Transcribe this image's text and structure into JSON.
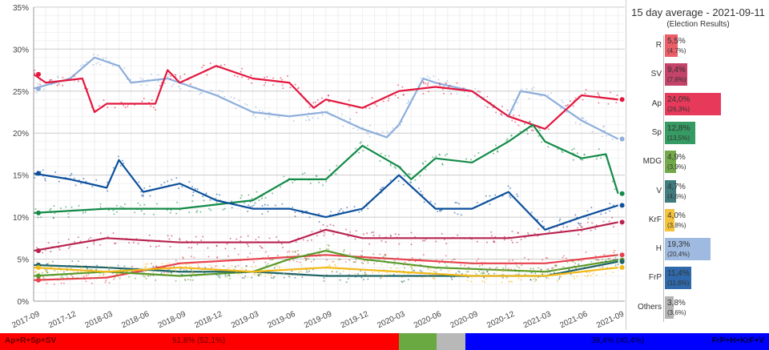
{
  "chart_data": {
    "type": "line",
    "ylim": [
      0,
      35
    ],
    "yticks": [
      "0%",
      "5%",
      "10%",
      "15%",
      "20%",
      "25%",
      "30%",
      "35%"
    ],
    "xticks": [
      "2017-09",
      "2017-12",
      "2018-03",
      "2018-06",
      "2018-09",
      "2018-12",
      "2019-03",
      "2019-06",
      "2019-09",
      "2019-12",
      "2020-03",
      "2020-06",
      "2020-09",
      "2020-12",
      "2021-03",
      "2021-06",
      "2021-09"
    ],
    "grid": true,
    "series": [
      {
        "name": "H",
        "color": "#8eaedb",
        "points": [
          [
            "2017-09",
            25.3
          ],
          [
            "2017-12",
            26.5
          ],
          [
            "2018-02",
            29
          ],
          [
            "2018-04",
            28
          ],
          [
            "2018-05",
            26
          ],
          [
            "2018-08",
            26.5
          ],
          [
            "2018-12",
            24.5
          ],
          [
            "2019-03",
            22.5
          ],
          [
            "2019-06",
            22
          ],
          [
            "2019-09",
            22.5
          ],
          [
            "2019-12",
            20.5
          ],
          [
            "2020-02",
            19.5
          ],
          [
            "2020-03",
            21
          ],
          [
            "2020-05",
            26.5
          ],
          [
            "2020-06",
            26
          ],
          [
            "2020-09",
            25
          ],
          [
            "2020-12",
            22
          ],
          [
            "2021-01",
            25
          ],
          [
            "2021-03",
            24.5
          ],
          [
            "2021-06",
            21.5
          ],
          [
            "2021-09",
            19.3
          ]
        ]
      },
      {
        "name": "Ap",
        "color": "#e3173e",
        "points": [
          [
            "2017-09",
            27
          ],
          [
            "2017-10",
            26
          ],
          [
            "2018-01",
            26.5
          ],
          [
            "2018-02",
            22.5
          ],
          [
            "2018-03",
            23.5
          ],
          [
            "2018-07",
            23.5
          ],
          [
            "2018-08",
            27.5
          ],
          [
            "2018-09",
            26
          ],
          [
            "2018-12",
            28
          ],
          [
            "2019-03",
            26.5
          ],
          [
            "2019-06",
            26
          ],
          [
            "2019-08",
            23
          ],
          [
            "2019-09",
            24
          ],
          [
            "2019-12",
            23
          ],
          [
            "2020-03",
            25
          ],
          [
            "2020-06",
            25.5
          ],
          [
            "2020-09",
            25
          ],
          [
            "2020-12",
            22
          ],
          [
            "2021-03",
            20.5
          ],
          [
            "2021-06",
            24.5
          ],
          [
            "2021-09",
            24
          ]
        ]
      },
      {
        "name": "Sp",
        "color": "#128a47",
        "points": [
          [
            "2017-09",
            10.5
          ],
          [
            "2018-03",
            11
          ],
          [
            "2018-09",
            11
          ],
          [
            "2018-12",
            11.5
          ],
          [
            "2019-03",
            12
          ],
          [
            "2019-06",
            14.5
          ],
          [
            "2019-09",
            14.5
          ],
          [
            "2019-12",
            18.5
          ],
          [
            "2020-03",
            16
          ],
          [
            "2020-04",
            14.5
          ],
          [
            "2020-06",
            17
          ],
          [
            "2020-09",
            16.5
          ],
          [
            "2020-12",
            19
          ],
          [
            "2021-02",
            21
          ],
          [
            "2021-03",
            19
          ],
          [
            "2021-06",
            17
          ],
          [
            "2021-08",
            17.5
          ],
          [
            "2021-09",
            12.8
          ]
        ]
      },
      {
        "name": "FrP",
        "color": "#0b4f9c",
        "points": [
          [
            "2017-09",
            15.2
          ],
          [
            "2017-12",
            14.5
          ],
          [
            "2018-03",
            13.5
          ],
          [
            "2018-04",
            16.8
          ],
          [
            "2018-06",
            13
          ],
          [
            "2018-09",
            14
          ],
          [
            "2018-12",
            12
          ],
          [
            "2019-03",
            11
          ],
          [
            "2019-06",
            11
          ],
          [
            "2019-09",
            10
          ],
          [
            "2019-12",
            11
          ],
          [
            "2020-03",
            15
          ],
          [
            "2020-06",
            11
          ],
          [
            "2020-09",
            11
          ],
          [
            "2020-12",
            13
          ],
          [
            "2021-03",
            8.5
          ],
          [
            "2021-06",
            10
          ],
          [
            "2021-09",
            11.4
          ]
        ]
      },
      {
        "name": "SV",
        "color": "#b8224f",
        "points": [
          [
            "2017-09",
            6
          ],
          [
            "2018-03",
            7.5
          ],
          [
            "2018-09",
            7
          ],
          [
            "2019-03",
            7
          ],
          [
            "2019-06",
            7
          ],
          [
            "2019-09",
            8.5
          ],
          [
            "2019-12",
            7.5
          ],
          [
            "2020-06",
            7.5
          ],
          [
            "2020-12",
            7.5
          ],
          [
            "2021-06",
            8.5
          ],
          [
            "2021-09",
            9.4
          ]
        ]
      },
      {
        "name": "R",
        "color": "#e8424e",
        "points": [
          [
            "2017-09",
            2.5
          ],
          [
            "2018-03",
            2.8
          ],
          [
            "2018-09",
            4.5
          ],
          [
            "2019-03",
            5
          ],
          [
            "2019-09",
            5.5
          ],
          [
            "2020-03",
            5
          ],
          [
            "2020-09",
            4.5
          ],
          [
            "2021-03",
            4.5
          ],
          [
            "2021-09",
            5.5
          ]
        ]
      },
      {
        "name": "MDG",
        "color": "#5a9a2a",
        "points": [
          [
            "2017-09",
            3
          ],
          [
            "2018-03",
            3.5
          ],
          [
            "2018-09",
            3
          ],
          [
            "2019-03",
            3.5
          ],
          [
            "2019-06",
            5
          ],
          [
            "2019-09",
            6
          ],
          [
            "2019-12",
            5
          ],
          [
            "2020-06",
            4
          ],
          [
            "2021-03",
            3.5
          ],
          [
            "2021-09",
            4.9
          ]
        ]
      },
      {
        "name": "V",
        "color": "#1f6467",
        "points": [
          [
            "2017-09",
            4.3
          ],
          [
            "2018-03",
            4
          ],
          [
            "2018-09",
            3.5
          ],
          [
            "2019-03",
            3.5
          ],
          [
            "2019-09",
            3
          ],
          [
            "2020-03",
            3
          ],
          [
            "2020-09",
            3
          ],
          [
            "2021-03",
            3
          ],
          [
            "2021-09",
            4.7
          ]
        ]
      },
      {
        "name": "KrF",
        "color": "#f3b918",
        "points": [
          [
            "2017-09",
            4
          ],
          [
            "2018-03",
            3.5
          ],
          [
            "2018-09",
            4
          ],
          [
            "2019-03",
            3.5
          ],
          [
            "2019-09",
            4
          ],
          [
            "2020-03",
            3.5
          ],
          [
            "2020-09",
            3
          ],
          [
            "2021-03",
            3
          ],
          [
            "2021-09",
            4
          ]
        ]
      }
    ]
  },
  "panel": {
    "title": "15 day average - 2021-09-11",
    "subtitle": "(Election Results)",
    "rows": [
      {
        "label": "R",
        "value": 5.5,
        "value_text": "5,5%",
        "result_text": "(4,7%)",
        "color": "#e8424e"
      },
      {
        "label": "SV",
        "value": 9.4,
        "value_text": "9,4%",
        "result_text": "(7,6%)",
        "color": "#b8224f"
      },
      {
        "label": "Ap",
        "value": 24.0,
        "value_text": "24,0%",
        "result_text": "(26,3%)",
        "color": "#e3173e"
      },
      {
        "label": "Sp",
        "value": 12.8,
        "value_text": "12,8%",
        "result_text": "(13,5%)",
        "color": "#128a47"
      },
      {
        "label": "MDG",
        "value": 4.9,
        "value_text": "4,9%",
        "result_text": "(3,9%)",
        "color": "#5a9a2a"
      },
      {
        "label": "V",
        "value": 4.7,
        "value_text": "4,7%",
        "result_text": "(4,6%)",
        "color": "#1f6467"
      },
      {
        "label": "KrF",
        "value": 4.0,
        "value_text": "4,0%",
        "result_text": "(3,8%)",
        "color": "#f3b918"
      },
      {
        "label": "H",
        "value": 19.3,
        "value_text": "19,3%",
        "result_text": "(20,4%)",
        "color": "#8eaedb"
      },
      {
        "label": "FrP",
        "value": 11.4,
        "value_text": "11,4%",
        "result_text": "(11,6%)",
        "color": "#0b4f9c"
      },
      {
        "label": "Others",
        "value": 3.8,
        "value_text": "3,8%",
        "result_text": "(3,6%)",
        "color": "#a6a6a6"
      }
    ]
  },
  "blocs": {
    "left_label": "Ap+R+Sp+SV",
    "left_value": "51,8% (52,1%)",
    "left_pct": 51.8,
    "left_color": "#ff0000",
    "mdg_pct": 4.9,
    "mdg_color": "#6aa842",
    "others_pct": 3.8,
    "others_color": "#b8b8b8",
    "right_label": "FrP+H+KrF+V",
    "right_value": "39,4% (40,4%)",
    "right_pct": 39.4,
    "right_color": "#0000ff"
  }
}
